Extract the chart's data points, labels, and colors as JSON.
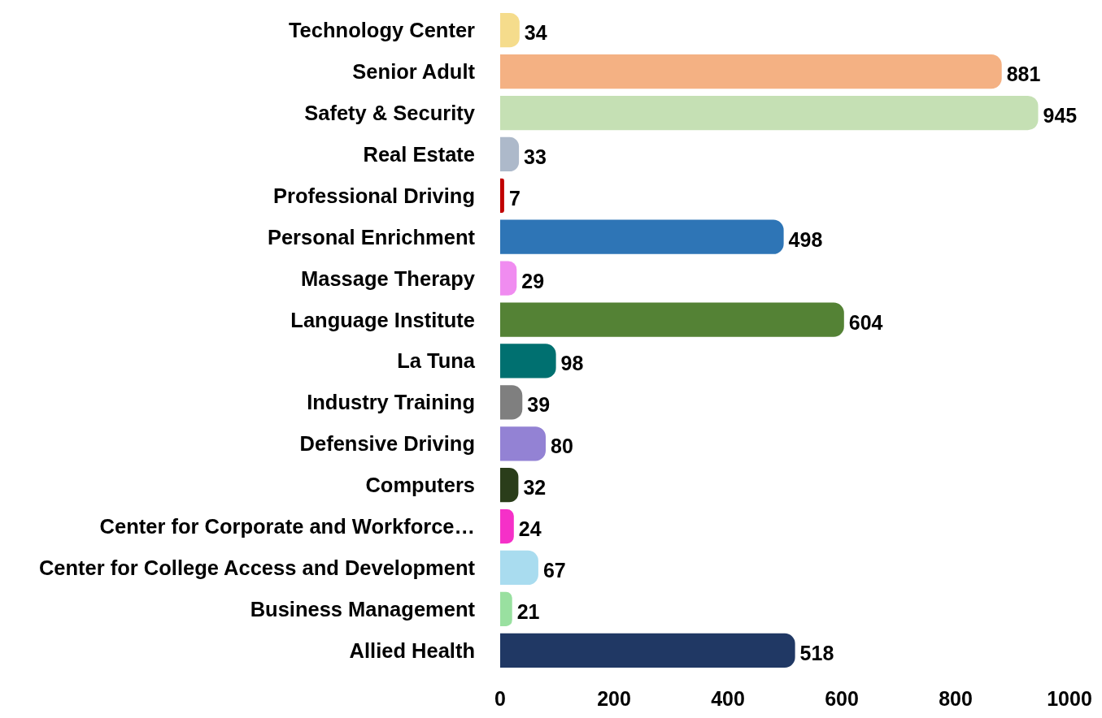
{
  "chart_data": {
    "type": "bar",
    "orientation": "horizontal",
    "categories": [
      "Technology Center",
      "Senior Adult",
      "Safety & Security",
      "Real Estate",
      "Professional Driving",
      "Personal Enrichment",
      "Massage Therapy",
      "Language Institute",
      "La Tuna",
      "Industry Training",
      "Defensive Driving",
      "Computers",
      "Center for Corporate and Workforce…",
      "Center for College Access and Development",
      "Business Management",
      "Allied Health"
    ],
    "values": [
      34,
      881,
      945,
      33,
      7,
      498,
      29,
      604,
      98,
      39,
      80,
      32,
      24,
      67,
      21,
      518
    ],
    "colors": [
      "#f5dc8c",
      "#f4b183",
      "#c5e0b4",
      "#adb9ca",
      "#c00000",
      "#2e75b6",
      "#f08cf0",
      "#548235",
      "#007070",
      "#7f7f7f",
      "#9382d4",
      "#2a3d1a",
      "#f530c8",
      "#a9dcef",
      "#99e0a0",
      "#203864"
    ],
    "xlim": [
      0,
      1000
    ],
    "xticks": [
      0,
      200,
      400,
      600,
      800,
      1000
    ],
    "data_labels": true
  }
}
